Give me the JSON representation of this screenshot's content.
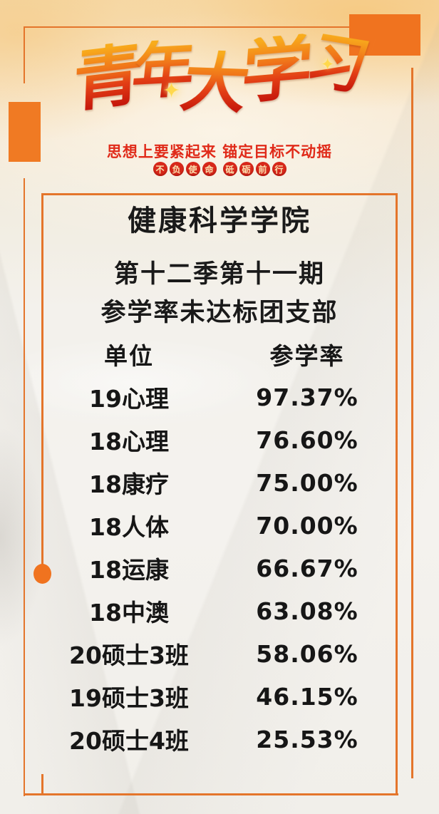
{
  "poster": {
    "brand": {
      "title": "青年大学习",
      "slogan": "思想上要紧起来 锚定目标不动摇",
      "badge_groups": [
        "不负使命",
        "砥砺前行"
      ]
    },
    "heading": {
      "college": "健康科学学院",
      "season": "第十二季第十一期",
      "subject": "参学率未达标团支部"
    },
    "table": {
      "columns": {
        "unit": "单位",
        "rate": "参学率"
      },
      "rows": [
        {
          "unit": "19心理",
          "rate": "97.37%"
        },
        {
          "unit": "18心理",
          "rate": "76.60%"
        },
        {
          "unit": "18康疗",
          "rate": "75.00%"
        },
        {
          "unit": "18人体",
          "rate": "70.00%"
        },
        {
          "unit": "18运康",
          "rate": "66.67%"
        },
        {
          "unit": "18中澳",
          "rate": "63.08%"
        },
        {
          "unit": "20硕士3班",
          "rate": "58.06%"
        },
        {
          "unit": "19硕士3班",
          "rate": "46.15%"
        },
        {
          "unit": "20硕士4班",
          "rate": "25.53%"
        }
      ]
    },
    "icons": {
      "sparkle": "✦"
    },
    "colors": {
      "frame_orange": "#e4752b",
      "block_orange": "#f0731f",
      "slogan_red": "#e02a19",
      "badge_red": "#d7281a",
      "badge_text": "#fbe2b0",
      "calligraphy_top": "#f8ac1c",
      "calligraphy_bottom": "#c2130a",
      "text_black": "#1a1a1a"
    }
  }
}
